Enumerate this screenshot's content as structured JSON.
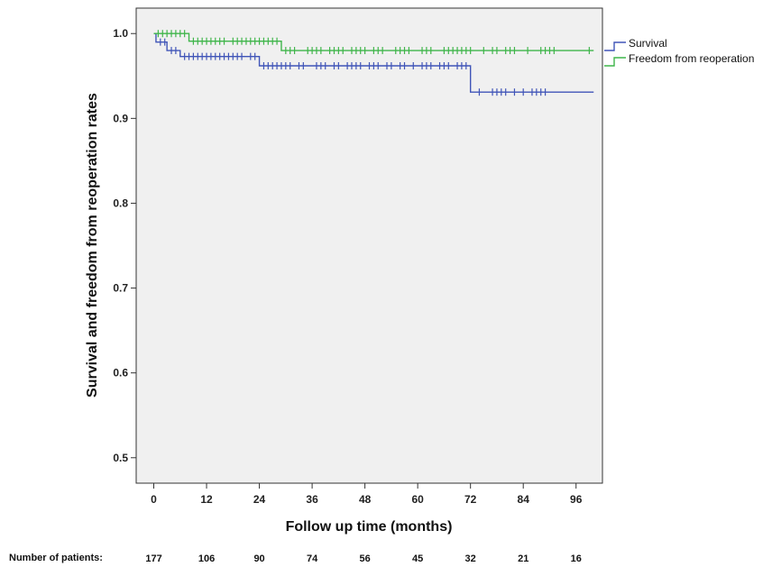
{
  "chart_data": {
    "type": "line",
    "xlabel": "Follow up time (months)",
    "ylabel": "Survival and freedom from reoperation rates",
    "xlim": [
      -4,
      102
    ],
    "ylim": [
      0.47,
      1.03
    ],
    "xticks": [
      0,
      12,
      24,
      36,
      48,
      60,
      72,
      84,
      96
    ],
    "yticks": [
      0.5,
      0.6,
      0.7,
      0.8,
      0.9,
      1.0
    ],
    "ytick_labels": [
      "0.5",
      "0.6",
      "0.7",
      "0.8",
      "0.9",
      "1.0"
    ],
    "grid": false,
    "legend_position": "outside-right-top",
    "colors": {
      "plot_bg": "#f0f0f0",
      "survival": "#4055b8",
      "freedom": "#3fb54a"
    },
    "series": [
      {
        "name": "Survival",
        "color": "#4055b8",
        "steps": [
          [
            0,
            1.0
          ],
          [
            0.5,
            0.99
          ],
          [
            3,
            0.98
          ],
          [
            6,
            0.973
          ],
          [
            24,
            0.962
          ],
          [
            72,
            0.931
          ],
          [
            100,
            0.931
          ]
        ],
        "censor_x": [
          1.5,
          2.5,
          4,
          5,
          7,
          8,
          9,
          10,
          11,
          12,
          13,
          14,
          15,
          16,
          17,
          18,
          19,
          20,
          22,
          23,
          25,
          26,
          27,
          28,
          29,
          30,
          31,
          33,
          34,
          37,
          38,
          39,
          41,
          42,
          44,
          45,
          46,
          47,
          49,
          50,
          51,
          53,
          54,
          56,
          57,
          59,
          61,
          62,
          63,
          65,
          66,
          67,
          69,
          70,
          71,
          74,
          77,
          78,
          79,
          80,
          82,
          84,
          86,
          87,
          88,
          89
        ]
      },
      {
        "name": "Freedom from reoperation",
        "color": "#3fb54a",
        "steps": [
          [
            0,
            1.0
          ],
          [
            8,
            0.991
          ],
          [
            29,
            0.98
          ],
          [
            100,
            0.98
          ]
        ],
        "censor_x": [
          1,
          2,
          3,
          4,
          5,
          6,
          7,
          9,
          10,
          11,
          12,
          13,
          14,
          15,
          16,
          18,
          19,
          20,
          21,
          22,
          23,
          24,
          25,
          26,
          27,
          28,
          30,
          31,
          32,
          35,
          36,
          37,
          38,
          40,
          41,
          42,
          43,
          45,
          46,
          47,
          48,
          50,
          51,
          52,
          55,
          56,
          57,
          58,
          61,
          62,
          63,
          66,
          67,
          68,
          69,
          70,
          71,
          72,
          75,
          77,
          78,
          80,
          81,
          82,
          85,
          88,
          89,
          90,
          91,
          99
        ]
      }
    ],
    "at_risk": {
      "label": "Number of patients:",
      "x": [
        0,
        12,
        24,
        36,
        48,
        60,
        72,
        84,
        96
      ],
      "counts": [
        "177",
        "106",
        "90",
        "74",
        "56",
        "45",
        "32",
        "21",
        "16"
      ]
    }
  }
}
